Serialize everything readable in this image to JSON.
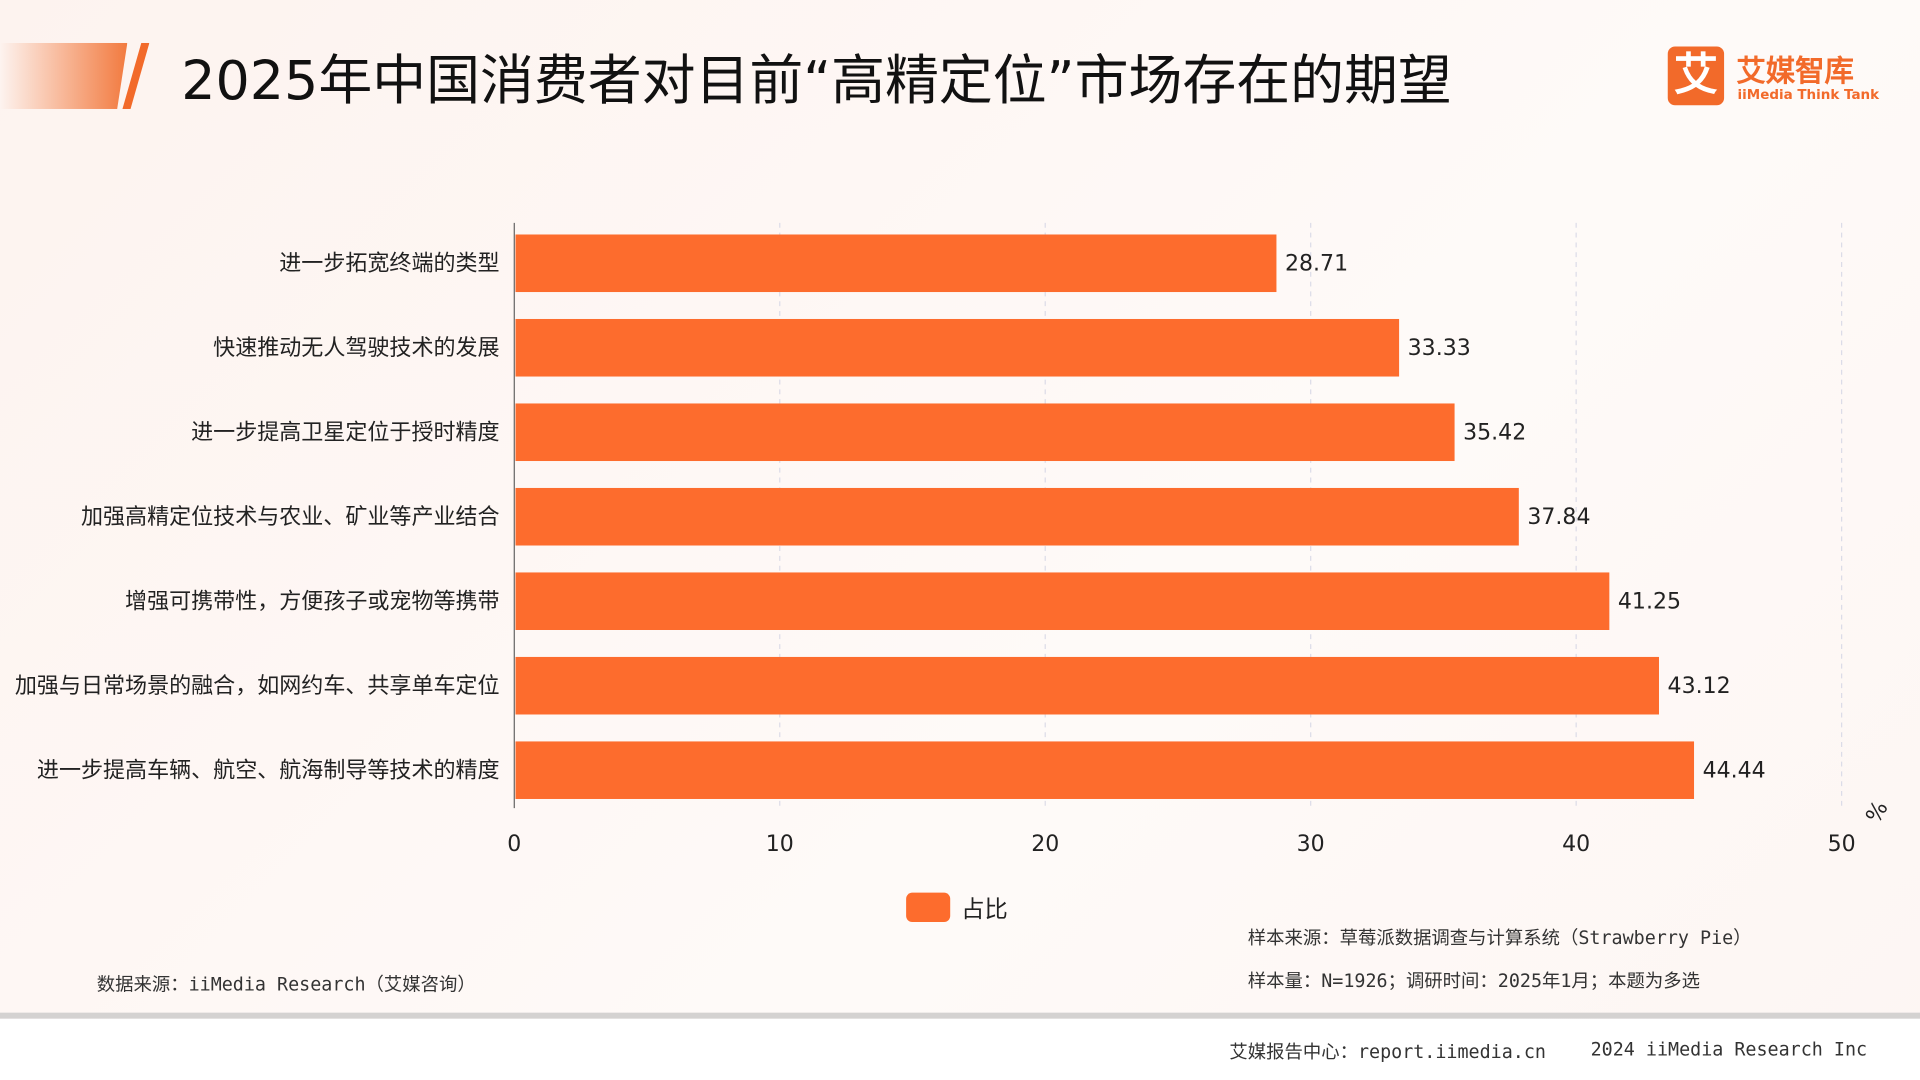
{
  "header": {
    "title": "2025年中国消费者对目前“高精定位”市场存在的期望",
    "logo_mark": "艾",
    "logo_cn": "艾媒智库",
    "logo_en": "iiMedia Think Tank"
  },
  "chart_data": {
    "type": "bar",
    "orientation": "horizontal",
    "title": "2025年中国消费者对目前“高精定位”市场存在的期望",
    "categories": [
      "进一步拓宽终端的类型",
      "快速推动无人驾驶技术的发展",
      "进一步提高卫星定位于授时精度",
      "加强高精定位技术与农业、矿业等产业结合",
      "增强可携带性，方便孩子或宠物等携带",
      "加强与日常场景的融合，如网约车、共享单车定位",
      "进一步提高车辆、航空、航海制导等技术的精度"
    ],
    "series": [
      {
        "name": "占比",
        "values": [
          28.71,
          33.33,
          35.42,
          37.84,
          41.25,
          43.12,
          44.44
        ],
        "color": "#fd6c2d"
      }
    ],
    "xlim": [
      0,
      50
    ],
    "xticks": [
      "0",
      "10",
      "20",
      "30",
      "40",
      "50"
    ],
    "xunit": "%",
    "grid": "vertical dashed",
    "legend": "bottom-center"
  },
  "notes": {
    "sample_source": "样本来源：草莓派数据调查与计算系统（Strawberry Pie）",
    "sample_size": "样本量：N=1926；调研时间：2025年1月；本题为多选",
    "data_source": "数据来源：iiMedia Research（艾媒咨询）"
  },
  "footer": {
    "report_center": "艾媒报告中心：report.iimedia.cn",
    "copyright": "2024 iiMedia Research Inc"
  }
}
